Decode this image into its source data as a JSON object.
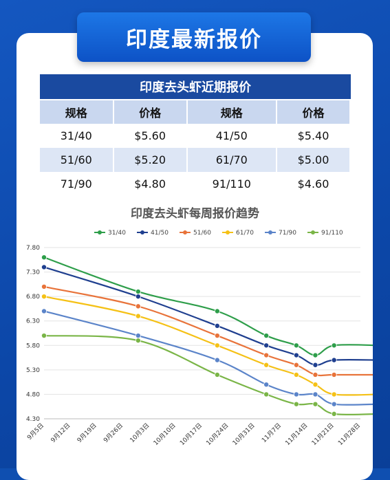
{
  "page_title": "印度最新报价",
  "table": {
    "title": "印度去头虾近期报价",
    "headers": [
      "规格",
      "价格",
      "规格",
      "价格"
    ],
    "rows": [
      [
        "31/40",
        "$5.60",
        "41/50",
        "$5.40"
      ],
      [
        "51/60",
        "$5.20",
        "61/70",
        "$5.00"
      ],
      [
        "71/90",
        "$4.80",
        "91/110",
        "$4.60"
      ]
    ]
  },
  "chart_data": {
    "type": "line",
    "title": "印度去头虾每周报价趋势",
    "x_labels": [
      "9月5日",
      "9月12日",
      "9月19日",
      "9月26日",
      "10月3日",
      "10月10日",
      "10月17日",
      "10月24日",
      "10月31日",
      "11月7日",
      "11月14日",
      "11月21日",
      "11月28日"
    ],
    "y_ticks": [
      "7.80",
      "7.30",
      "6.80",
      "6.30",
      "5.80",
      "5.30",
      "4.80",
      "4.30"
    ],
    "ylim": [
      4.3,
      7.8
    ],
    "grid": true,
    "legend_position": "top",
    "series": [
      {
        "name": "31/40",
        "color": "#2e9e4a",
        "points": [
          [
            0,
            7.6
          ],
          [
            3.57,
            6.9
          ],
          [
            6.57,
            6.5
          ],
          [
            8.43,
            6.0
          ],
          [
            9.57,
            5.8
          ],
          [
            10.29,
            5.6
          ],
          [
            11,
            5.8
          ],
          [
            12.71,
            5.8
          ]
        ]
      },
      {
        "name": "41/50",
        "color": "#1f3f8f",
        "points": [
          [
            0,
            7.4
          ],
          [
            3.57,
            6.8
          ],
          [
            6.57,
            6.2
          ],
          [
            8.43,
            5.8
          ],
          [
            9.57,
            5.6
          ],
          [
            10.29,
            5.4
          ],
          [
            11,
            5.5
          ],
          [
            12.71,
            5.5
          ]
        ]
      },
      {
        "name": "51/60",
        "color": "#e8733a",
        "points": [
          [
            0,
            7.0
          ],
          [
            3.57,
            6.6
          ],
          [
            6.57,
            6.0
          ],
          [
            8.43,
            5.6
          ],
          [
            9.57,
            5.4
          ],
          [
            10.29,
            5.2
          ],
          [
            11,
            5.2
          ],
          [
            12.71,
            5.2
          ]
        ]
      },
      {
        "name": "61/70",
        "color": "#f5c116",
        "points": [
          [
            0,
            6.8
          ],
          [
            3.57,
            6.4
          ],
          [
            6.57,
            5.8
          ],
          [
            8.43,
            5.4
          ],
          [
            9.57,
            5.2
          ],
          [
            10.29,
            5.0
          ],
          [
            11,
            4.8
          ],
          [
            12.71,
            4.8
          ]
        ]
      },
      {
        "name": "71/90",
        "color": "#5b84c9",
        "points": [
          [
            0,
            6.5
          ],
          [
            3.57,
            6.0
          ],
          [
            6.57,
            5.5
          ],
          [
            8.43,
            5.0
          ],
          [
            9.57,
            4.8
          ],
          [
            10.29,
            4.8
          ],
          [
            11,
            4.6
          ],
          [
            12.71,
            4.6
          ]
        ]
      },
      {
        "name": "91/110",
        "color": "#7ab547",
        "points": [
          [
            0,
            6.0
          ],
          [
            3.57,
            5.9
          ],
          [
            6.57,
            5.2
          ],
          [
            8.43,
            4.8
          ],
          [
            9.57,
            4.6
          ],
          [
            10.29,
            4.6
          ],
          [
            11,
            4.4
          ],
          [
            12.71,
            4.4
          ]
        ]
      }
    ]
  }
}
